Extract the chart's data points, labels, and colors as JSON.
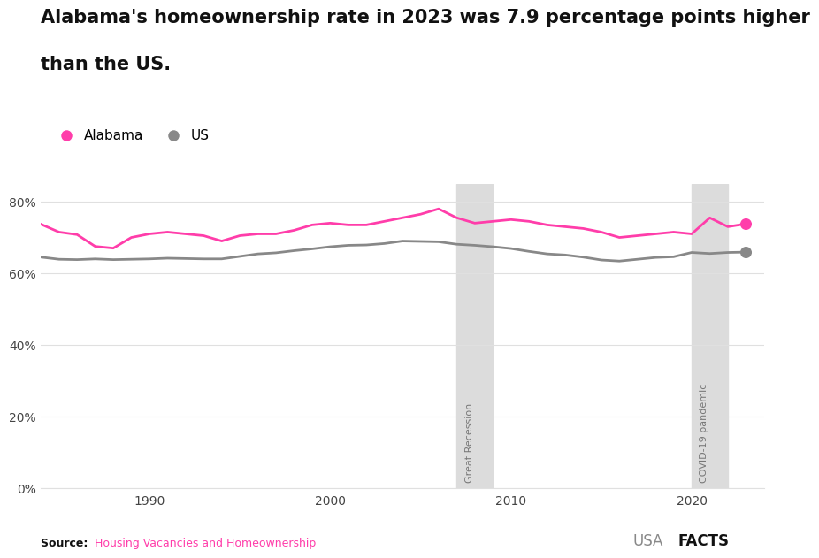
{
  "title_line1": "Alabama's homeownership rate in 2023 was 7.9 percentage points higher",
  "title_line2": "than the US.",
  "alabama_years": [
    1984,
    1985,
    1986,
    1987,
    1988,
    1989,
    1990,
    1991,
    1992,
    1993,
    1994,
    1995,
    1996,
    1997,
    1998,
    1999,
    2000,
    2001,
    2002,
    2003,
    2004,
    2005,
    2006,
    2007,
    2008,
    2009,
    2010,
    2011,
    2012,
    2013,
    2014,
    2015,
    2016,
    2017,
    2018,
    2019,
    2020,
    2021,
    2022,
    2023
  ],
  "alabama_values": [
    73.7,
    71.5,
    70.8,
    67.5,
    67.0,
    70.0,
    71.0,
    71.5,
    71.0,
    70.5,
    69.0,
    70.5,
    71.0,
    71.0,
    72.0,
    73.5,
    74.0,
    73.5,
    73.5,
    74.5,
    75.5,
    76.5,
    78.0,
    75.5,
    74.0,
    74.5,
    75.0,
    74.5,
    73.5,
    73.0,
    72.5,
    71.5,
    70.0,
    70.5,
    71.0,
    71.5,
    71.0,
    75.5,
    73.0,
    73.8
  ],
  "us_years": [
    1984,
    1985,
    1986,
    1987,
    1988,
    1989,
    1990,
    1991,
    1992,
    1993,
    1994,
    1995,
    1996,
    1997,
    1998,
    1999,
    2000,
    2001,
    2002,
    2003,
    2004,
    2005,
    2006,
    2007,
    2008,
    2009,
    2010,
    2011,
    2012,
    2013,
    2014,
    2015,
    2016,
    2017,
    2018,
    2019,
    2020,
    2021,
    2022,
    2023
  ],
  "us_values": [
    64.5,
    63.9,
    63.8,
    64.0,
    63.8,
    63.9,
    64.0,
    64.2,
    64.1,
    64.0,
    64.0,
    64.7,
    65.4,
    65.7,
    66.3,
    66.8,
    67.4,
    67.8,
    67.9,
    68.3,
    69.0,
    68.9,
    68.8,
    68.1,
    67.8,
    67.4,
    66.9,
    66.1,
    65.4,
    65.1,
    64.5,
    63.7,
    63.4,
    63.9,
    64.4,
    64.6,
    65.8,
    65.5,
    65.8,
    65.9
  ],
  "alabama_color": "#FF3DAA",
  "us_color": "#888888",
  "recession_start": 2007,
  "recession_end": 2009,
  "covid_start": 2020,
  "covid_end": 2022,
  "shade_color": "#DCDCDC",
  "recession_label": "Great Recession",
  "covid_label": "COVID-19 pandemic",
  "legend_alabama": "Alabama",
  "legend_us": "US",
  "source_label": "Source:",
  "source_text": "Housing Vacancies and Homeownership",
  "source_color": "#FF3DAA",
  "ylim": [
    0,
    85
  ],
  "yticks": [
    0,
    20,
    40,
    60,
    80
  ],
  "xlim": [
    1984,
    2024
  ],
  "xticks": [
    1990,
    2000,
    2010,
    2020
  ],
  "background_color": "#ffffff",
  "grid_color": "#e0e0e0",
  "title_fontsize": 15,
  "legend_fontsize": 11,
  "tick_fontsize": 10,
  "source_fontsize": 9
}
